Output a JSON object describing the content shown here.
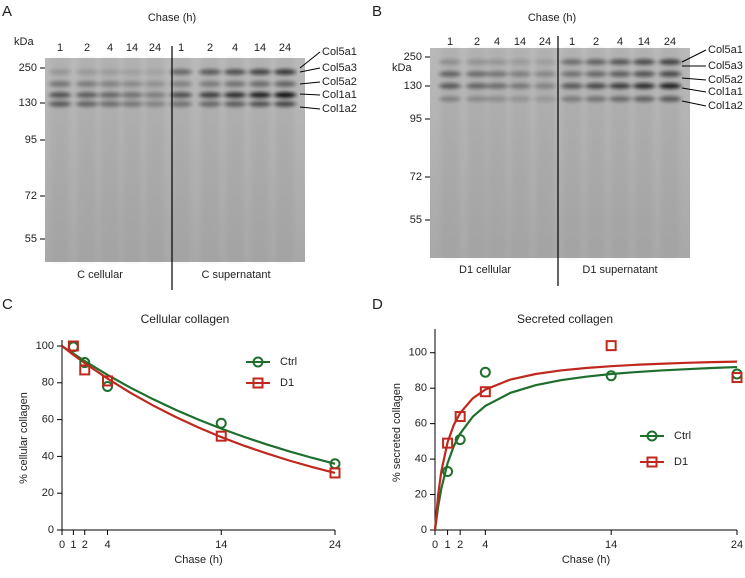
{
  "blots": [
    {
      "panel": "A",
      "header": "Chase (h)",
      "unit": "kDa",
      "lanes": [
        1,
        2,
        4,
        14,
        24,
        1,
        2,
        4,
        14,
        24
      ],
      "markers": [
        250,
        130,
        95,
        72,
        55
      ],
      "bands": [
        "Col5a1",
        "Col5a3",
        "Col5a2",
        "Col1a1",
        "Col1a2"
      ],
      "sections": [
        "C cellular",
        "C supernatant"
      ]
    },
    {
      "panel": "B",
      "header": "Chase (h)",
      "unit": "kDa",
      "lanes": [
        1,
        2,
        4,
        14,
        24,
        1,
        2,
        4,
        14,
        24
      ],
      "markers": [
        250,
        130,
        95,
        72,
        55
      ],
      "bands": [
        "Col5a1",
        "Col5a3",
        "Col5a2",
        "Col1a1",
        "Col1a2"
      ],
      "sections": [
        "D1 cellular",
        "D1 supernatant"
      ]
    }
  ],
  "chart_data": [
    {
      "panel": "C",
      "type": "scatter",
      "title": "Cellular collagen",
      "x_label": "Chase (h)",
      "y_label": "% cellular collagen",
      "x": [
        1,
        2,
        4,
        14,
        24
      ],
      "xlim": [
        0,
        24
      ],
      "xticks": [
        0,
        1,
        2,
        4,
        14,
        24
      ],
      "ylim": [
        0,
        100
      ],
      "yticks": [
        0,
        20,
        40,
        60,
        80,
        100
      ],
      "fit_x": [
        0,
        1,
        2,
        4,
        6,
        8,
        10,
        12,
        14,
        16,
        18,
        20,
        22,
        24
      ],
      "series": [
        {
          "name": "Ctrl",
          "color": "#1e6e2c",
          "marker": "circle",
          "values": [
            99.5,
            91,
            78,
            58,
            36
          ],
          "fit": [
            100,
            95.8,
            91.8,
            84.3,
            77.4,
            71.1,
            65.3,
            60.0,
            55.1,
            50.6,
            46.5,
            42.7,
            39.2,
            36.0
          ]
        },
        {
          "name": "D1",
          "color": "#c0281e",
          "marker": "square",
          "values": [
            100,
            87,
            81,
            51,
            31
          ],
          "fit": [
            100,
            95.2,
            90.7,
            82.3,
            74.6,
            67.7,
            61.4,
            55.7,
            50.5,
            45.8,
            41.6,
            37.7,
            34.2,
            31.0
          ]
        }
      ]
    },
    {
      "panel": "D",
      "type": "scatter",
      "title": "Secreted collagen",
      "x_label": "Chase (h)",
      "y_label": "% secreted collagen",
      "x": [
        1,
        2,
        4,
        14,
        24
      ],
      "xlim": [
        0,
        24
      ],
      "xticks": [
        0,
        1,
        2,
        4,
        14,
        24
      ],
      "ylim": [
        0,
        110
      ],
      "yticks": [
        0,
        20,
        40,
        60,
        80,
        100
      ],
      "fit_x": [
        0,
        0.25,
        0.5,
        1,
        1.5,
        2,
        3,
        4,
        6,
        8,
        10,
        12,
        14,
        16,
        18,
        20,
        22,
        24
      ],
      "series": [
        {
          "name": "Ctrl",
          "color": "#1e6e2c",
          "marker": "circle",
          "values": [
            33,
            51,
            89,
            87,
            88
          ],
          "fit": [
            0,
            13.2,
            23.3,
            37.7,
            47.4,
            54.4,
            63.9,
            70.0,
            77.4,
            81.7,
            84.5,
            86.5,
            88.0,
            89.1,
            90.0,
            90.7,
            91.4,
            91.9
          ]
        },
        {
          "name": "D1",
          "color": "#c0281e",
          "marker": "square",
          "values": [
            49,
            64,
            78,
            104,
            86
          ],
          "fit": [
            0,
            19.8,
            33,
            49.5,
            59.4,
            66,
            74.3,
            79.2,
            84.9,
            88,
            90,
            91.4,
            92.4,
            93.2,
            93.8,
            94.3,
            94.7,
            95.0
          ]
        }
      ]
    }
  ]
}
